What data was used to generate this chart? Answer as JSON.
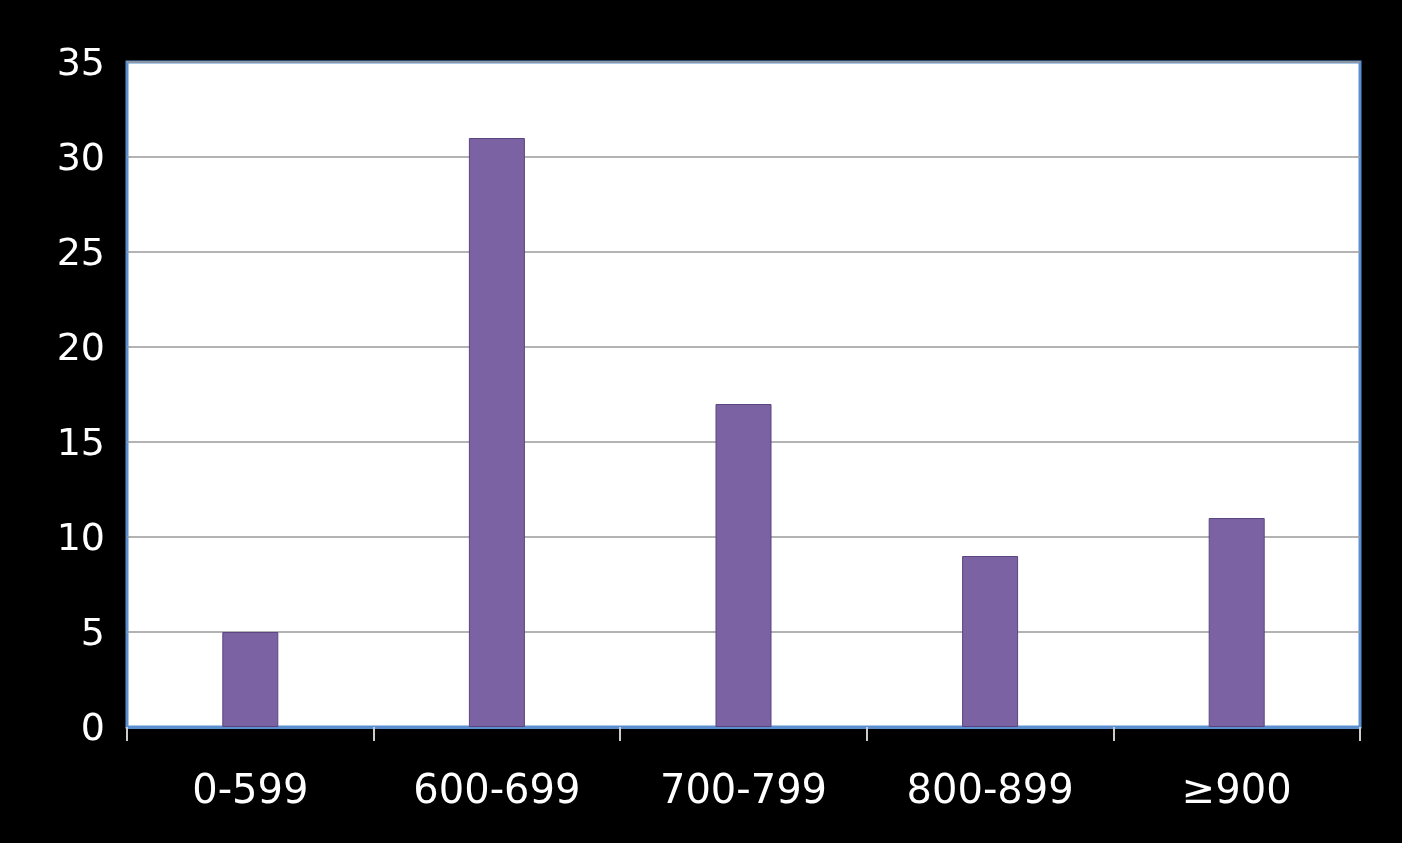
{
  "chart_data": {
    "type": "bar",
    "categories": [
      "0-599",
      "600-699",
      "700-799",
      "800-899",
      "≥900"
    ],
    "values": [
      5,
      31,
      17,
      9,
      11
    ],
    "color": "#7b62a3",
    "ylim": [
      0,
      35
    ],
    "yticks": [
      0,
      5,
      10,
      15,
      20,
      25,
      30,
      35
    ],
    "grid": "y"
  }
}
